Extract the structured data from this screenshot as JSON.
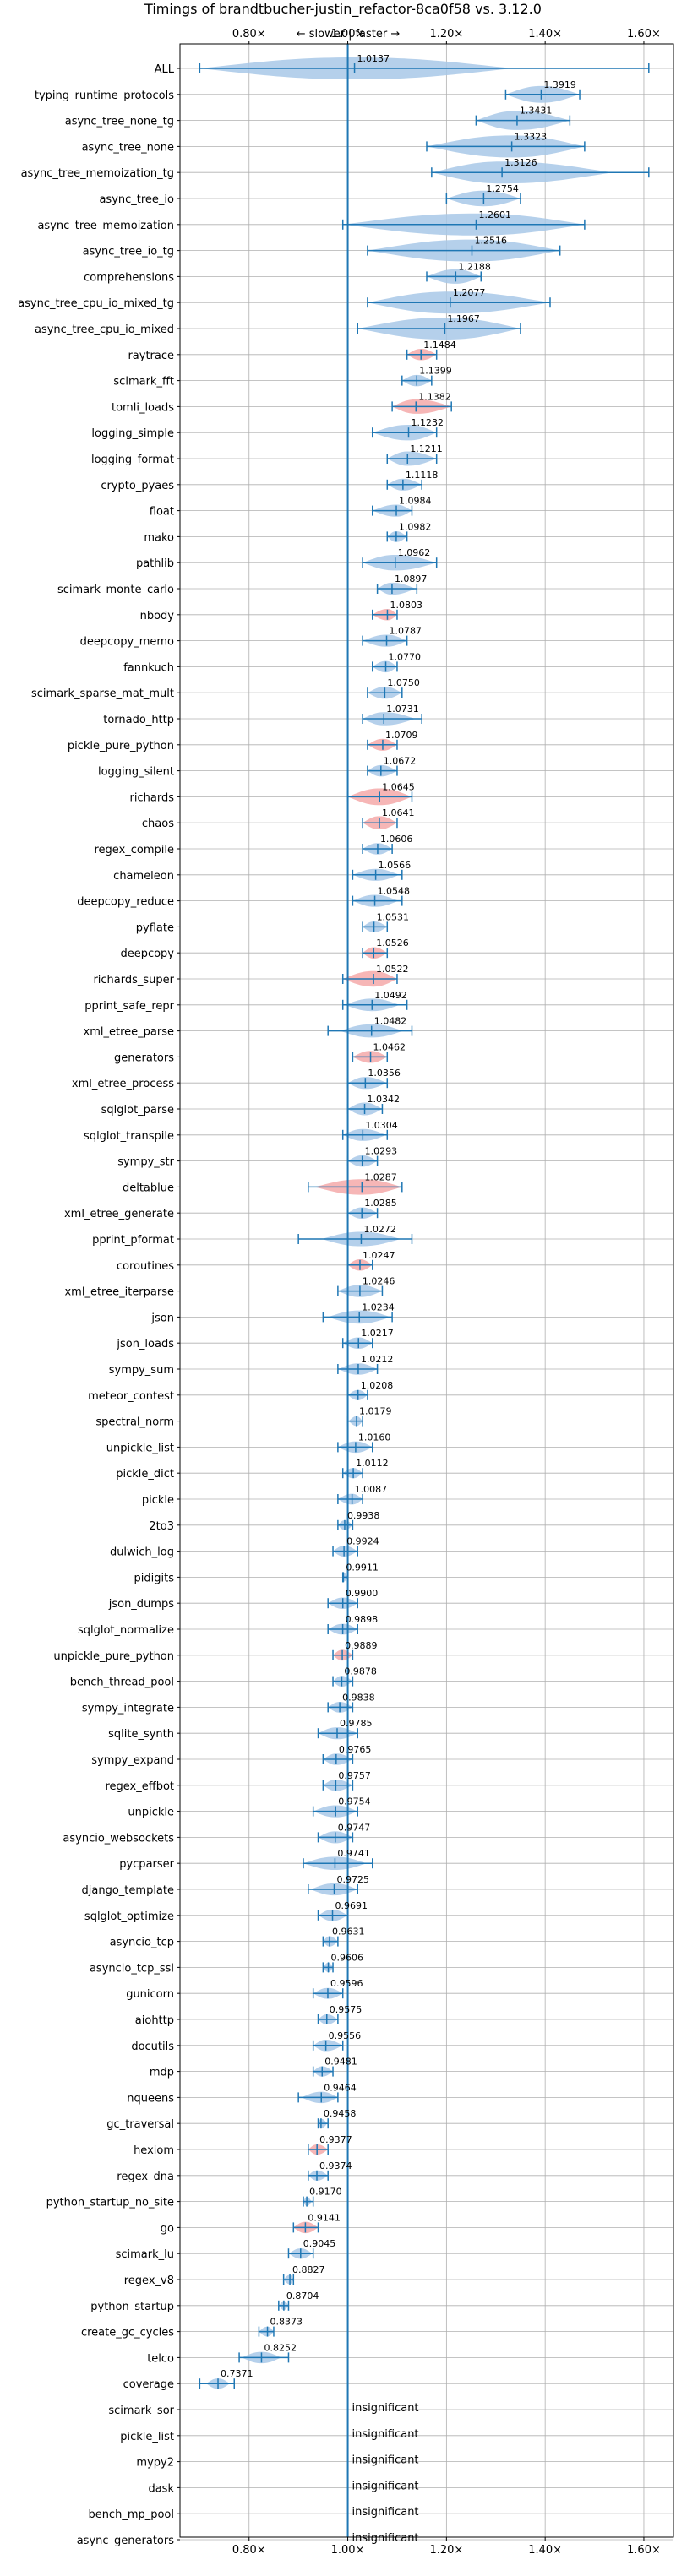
{
  "chart_data": {
    "type": "violin",
    "title": "Timings of brandtbucher-justin_refactor-8ca0f58 vs. 3.12.0",
    "direction_labels": {
      "slower": "← slower",
      "separator": "|",
      "faster": "faster →"
    },
    "xlim": [
      0.66,
      1.66
    ],
    "xticks": [
      {
        "value": 0.8,
        "label": "0.80×"
      },
      {
        "value": 1.0,
        "label": "1.00×"
      },
      {
        "value": 1.2,
        "label": "1.20×"
      },
      {
        "value": 1.4,
        "label": "1.40×"
      },
      {
        "value": 1.6,
        "label": "1.60×"
      }
    ],
    "grid": true,
    "reference_line": 1.0,
    "insignificant_label": "insignificant",
    "colors": {
      "faster": "#a8c8e8",
      "slower": "#f4a9a9",
      "marker": "#1f77b4",
      "reference": "#1f77b4",
      "grid": "#b0b0b0"
    },
    "benchmarks": [
      {
        "name": "ALL",
        "value": 1.0137,
        "label": "1.0137",
        "lo": 0.7,
        "hi": 1.61,
        "spread": 0.2,
        "color": "faster"
      },
      {
        "name": "typing_runtime_protocols",
        "value": 1.3919,
        "label": "1.3919",
        "lo": 1.32,
        "hi": 1.47,
        "spread": 0.07,
        "color": "faster"
      },
      {
        "name": "async_tree_none_tg",
        "value": 1.3431,
        "label": "1.3431",
        "lo": 1.26,
        "hi": 1.45,
        "spread": 0.09,
        "color": "faster"
      },
      {
        "name": "async_tree_none",
        "value": 1.3323,
        "label": "1.3323",
        "lo": 1.16,
        "hi": 1.48,
        "spread": 0.14,
        "color": "faster"
      },
      {
        "name": "async_tree_memoization_tg",
        "value": 1.3126,
        "label": "1.3126",
        "lo": 1.17,
        "hi": 1.61,
        "spread": 0.14,
        "color": "faster"
      },
      {
        "name": "async_tree_io",
        "value": 1.2754,
        "label": "1.2754",
        "lo": 1.2,
        "hi": 1.35,
        "spread": 0.06,
        "color": "faster"
      },
      {
        "name": "async_tree_memoization",
        "value": 1.2601,
        "label": "1.2601",
        "lo": 0.99,
        "hi": 1.48,
        "spread": 0.22,
        "color": "faster"
      },
      {
        "name": "async_tree_io_tg",
        "value": 1.2516,
        "label": "1.2516",
        "lo": 1.04,
        "hi": 1.43,
        "spread": 0.17,
        "color": "faster"
      },
      {
        "name": "comprehensions",
        "value": 1.2188,
        "label": "1.2188",
        "lo": 1.16,
        "hi": 1.27,
        "spread": 0.05,
        "color": "faster"
      },
      {
        "name": "async_tree_cpu_io_mixed_tg",
        "value": 1.2077,
        "label": "1.2077",
        "lo": 1.04,
        "hi": 1.41,
        "spread": 0.17,
        "color": "faster"
      },
      {
        "name": "async_tree_cpu_io_mixed",
        "value": 1.1967,
        "label": "1.1967",
        "lo": 1.02,
        "hi": 1.35,
        "spread": 0.15,
        "color": "faster"
      },
      {
        "name": "raytrace",
        "value": 1.1484,
        "label": "1.1484",
        "lo": 1.12,
        "hi": 1.18,
        "spread": 0.025,
        "color": "slower"
      },
      {
        "name": "scimark_fft",
        "value": 1.1399,
        "label": "1.1399",
        "lo": 1.11,
        "hi": 1.17,
        "spread": 0.025,
        "color": "faster"
      },
      {
        "name": "tomli_loads",
        "value": 1.1382,
        "label": "1.1382",
        "lo": 1.09,
        "hi": 1.21,
        "spread": 0.05,
        "color": "slower"
      },
      {
        "name": "logging_simple",
        "value": 1.1232,
        "label": "1.1232",
        "lo": 1.05,
        "hi": 1.18,
        "spread": 0.06,
        "color": "faster"
      },
      {
        "name": "logging_format",
        "value": 1.1211,
        "label": "1.1211",
        "lo": 1.08,
        "hi": 1.18,
        "spread": 0.05,
        "color": "faster"
      },
      {
        "name": "crypto_pyaes",
        "value": 1.1118,
        "label": "1.1118",
        "lo": 1.08,
        "hi": 1.15,
        "spread": 0.03,
        "color": "faster"
      },
      {
        "name": "float",
        "value": 1.0984,
        "label": "1.0984",
        "lo": 1.05,
        "hi": 1.13,
        "spread": 0.03,
        "color": "faster"
      },
      {
        "name": "mako",
        "value": 1.0982,
        "label": "1.0982",
        "lo": 1.08,
        "hi": 1.12,
        "spread": 0.02,
        "color": "faster"
      },
      {
        "name": "pathlib",
        "value": 1.0962,
        "label": "1.0962",
        "lo": 1.03,
        "hi": 1.18,
        "spread": 0.06,
        "color": "faster"
      },
      {
        "name": "scimark_monte_carlo",
        "value": 1.0897,
        "label": "1.0897",
        "lo": 1.06,
        "hi": 1.14,
        "spread": 0.03,
        "color": "faster"
      },
      {
        "name": "nbody",
        "value": 1.0803,
        "label": "1.0803",
        "lo": 1.05,
        "hi": 1.1,
        "spread": 0.025,
        "color": "slower"
      },
      {
        "name": "deepcopy_memo",
        "value": 1.0787,
        "label": "1.0787",
        "lo": 1.03,
        "hi": 1.12,
        "spread": 0.03,
        "color": "faster"
      },
      {
        "name": "fannkuch",
        "value": 1.077,
        "label": "1.0770",
        "lo": 1.05,
        "hi": 1.1,
        "spread": 0.025,
        "color": "faster"
      },
      {
        "name": "scimark_sparse_mat_mult",
        "value": 1.075,
        "label": "1.0750",
        "lo": 1.04,
        "hi": 1.11,
        "spread": 0.03,
        "color": "faster"
      },
      {
        "name": "tornado_http",
        "value": 1.0731,
        "label": "1.0731",
        "lo": 1.03,
        "hi": 1.15,
        "spread": 0.04,
        "color": "faster"
      },
      {
        "name": "pickle_pure_python",
        "value": 1.0709,
        "label": "1.0709",
        "lo": 1.04,
        "hi": 1.1,
        "spread": 0.03,
        "color": "slower"
      },
      {
        "name": "logging_silent",
        "value": 1.0672,
        "label": "1.0672",
        "lo": 1.04,
        "hi": 1.1,
        "spread": 0.025,
        "color": "faster"
      },
      {
        "name": "richards",
        "value": 1.0645,
        "label": "1.0645",
        "lo": 1.0,
        "hi": 1.13,
        "spread": 0.07,
        "color": "slower"
      },
      {
        "name": "chaos",
        "value": 1.0641,
        "label": "1.0641",
        "lo": 1.03,
        "hi": 1.1,
        "spread": 0.04,
        "color": "slower"
      },
      {
        "name": "regex_compile",
        "value": 1.0606,
        "label": "1.0606",
        "lo": 1.03,
        "hi": 1.09,
        "spread": 0.025,
        "color": "faster"
      },
      {
        "name": "chameleon",
        "value": 1.0566,
        "label": "1.0566",
        "lo": 1.01,
        "hi": 1.11,
        "spread": 0.03,
        "color": "faster"
      },
      {
        "name": "deepcopy_reduce",
        "value": 1.0548,
        "label": "1.0548",
        "lo": 1.01,
        "hi": 1.11,
        "spread": 0.03,
        "color": "faster"
      },
      {
        "name": "pyflate",
        "value": 1.0531,
        "label": "1.0531",
        "lo": 1.03,
        "hi": 1.08,
        "spread": 0.02,
        "color": "faster"
      },
      {
        "name": "deepcopy",
        "value": 1.0526,
        "label": "1.0526",
        "lo": 1.03,
        "hi": 1.08,
        "spread": 0.025,
        "color": "slower"
      },
      {
        "name": "richards_super",
        "value": 1.0522,
        "label": "1.0522",
        "lo": 0.99,
        "hi": 1.1,
        "spread": 0.06,
        "color": "slower"
      },
      {
        "name": "pprint_safe_repr",
        "value": 1.0492,
        "label": "1.0492",
        "lo": 0.99,
        "hi": 1.12,
        "spread": 0.035,
        "color": "faster"
      },
      {
        "name": "xml_etree_parse",
        "value": 1.0482,
        "label": "1.0482",
        "lo": 0.96,
        "hi": 1.13,
        "spread": 0.04,
        "color": "faster"
      },
      {
        "name": "generators",
        "value": 1.0462,
        "label": "1.0462",
        "lo": 1.01,
        "hi": 1.08,
        "spread": 0.03,
        "color": "slower"
      },
      {
        "name": "xml_etree_process",
        "value": 1.0356,
        "label": "1.0356",
        "lo": 1.0,
        "hi": 1.08,
        "spread": 0.03,
        "color": "faster"
      },
      {
        "name": "sqlglot_parse",
        "value": 1.0342,
        "label": "1.0342",
        "lo": 1.0,
        "hi": 1.07,
        "spread": 0.035,
        "color": "faster"
      },
      {
        "name": "sqlglot_transpile",
        "value": 1.0304,
        "label": "1.0304",
        "lo": 0.99,
        "hi": 1.08,
        "spread": 0.03,
        "color": "faster"
      },
      {
        "name": "sympy_str",
        "value": 1.0293,
        "label": "1.0293",
        "lo": 1.0,
        "hi": 1.06,
        "spread": 0.025,
        "color": "faster"
      },
      {
        "name": "deltablue",
        "value": 1.0287,
        "label": "1.0287",
        "lo": 0.92,
        "hi": 1.11,
        "spread": 0.06,
        "color": "slower"
      },
      {
        "name": "xml_etree_generate",
        "value": 1.0285,
        "label": "1.0285",
        "lo": 1.0,
        "hi": 1.06,
        "spread": 0.025,
        "color": "faster"
      },
      {
        "name": "pprint_pformat",
        "value": 1.0272,
        "label": "1.0272",
        "lo": 0.9,
        "hi": 1.13,
        "spread": 0.05,
        "color": "faster"
      },
      {
        "name": "coroutines",
        "value": 1.0247,
        "label": "1.0247",
        "lo": 1.0,
        "hi": 1.05,
        "spread": 0.025,
        "color": "slower"
      },
      {
        "name": "xml_etree_iterparse",
        "value": 1.0246,
        "label": "1.0246",
        "lo": 0.98,
        "hi": 1.07,
        "spread": 0.03,
        "color": "faster"
      },
      {
        "name": "json",
        "value": 1.0234,
        "label": "1.0234",
        "lo": 0.95,
        "hi": 1.09,
        "spread": 0.04,
        "color": "faster"
      },
      {
        "name": "json_loads",
        "value": 1.0217,
        "label": "1.0217",
        "lo": 0.99,
        "hi": 1.05,
        "spread": 0.025,
        "color": "faster"
      },
      {
        "name": "sympy_sum",
        "value": 1.0212,
        "label": "1.0212",
        "lo": 0.98,
        "hi": 1.06,
        "spread": 0.025,
        "color": "faster"
      },
      {
        "name": "meteor_contest",
        "value": 1.0208,
        "label": "1.0208",
        "lo": 1.0,
        "hi": 1.04,
        "spread": 0.015,
        "color": "faster"
      },
      {
        "name": "spectral_norm",
        "value": 1.0179,
        "label": "1.0179",
        "lo": 1.0,
        "hi": 1.03,
        "spread": 0.01,
        "color": "faster"
      },
      {
        "name": "unpickle_list",
        "value": 1.016,
        "label": "1.0160",
        "lo": 0.98,
        "hi": 1.05,
        "spread": 0.025,
        "color": "faster"
      },
      {
        "name": "pickle_dict",
        "value": 1.0112,
        "label": "1.0112",
        "lo": 0.99,
        "hi": 1.03,
        "spread": 0.015,
        "color": "faster"
      },
      {
        "name": "pickle",
        "value": 1.0087,
        "label": "1.0087",
        "lo": 0.98,
        "hi": 1.03,
        "spread": 0.02,
        "color": "faster"
      },
      {
        "name": "2to3",
        "value": 0.9938,
        "label": "0.9938",
        "lo": 0.98,
        "hi": 1.01,
        "spread": 0.012,
        "color": "faster"
      },
      {
        "name": "dulwich_log",
        "value": 0.9924,
        "label": "0.9924",
        "lo": 0.97,
        "hi": 1.02,
        "spread": 0.02,
        "color": "faster"
      },
      {
        "name": "pidigits",
        "value": 0.9911,
        "label": "0.9911",
        "lo": 0.99,
        "hi": 1.0,
        "spread": 0.006,
        "color": "faster"
      },
      {
        "name": "json_dumps",
        "value": 0.99,
        "label": "0.9900",
        "lo": 0.96,
        "hi": 1.02,
        "spread": 0.025,
        "color": "faster"
      },
      {
        "name": "sqlglot_normalize",
        "value": 0.9898,
        "label": "0.9898",
        "lo": 0.96,
        "hi": 1.02,
        "spread": 0.02,
        "color": "faster"
      },
      {
        "name": "unpickle_pure_python",
        "value": 0.9889,
        "label": "0.9889",
        "lo": 0.97,
        "hi": 1.01,
        "spread": 0.02,
        "color": "slower"
      },
      {
        "name": "bench_thread_pool",
        "value": 0.9878,
        "label": "0.9878",
        "lo": 0.97,
        "hi": 1.01,
        "spread": 0.02,
        "color": "faster"
      },
      {
        "name": "sympy_integrate",
        "value": 0.9838,
        "label": "0.9838",
        "lo": 0.96,
        "hi": 1.01,
        "spread": 0.02,
        "color": "faster"
      },
      {
        "name": "sqlite_synth",
        "value": 0.9785,
        "label": "0.9785",
        "lo": 0.94,
        "hi": 1.02,
        "spread": 0.03,
        "color": "faster"
      },
      {
        "name": "sympy_expand",
        "value": 0.9765,
        "label": "0.9765",
        "lo": 0.95,
        "hi": 1.01,
        "spread": 0.025,
        "color": "faster"
      },
      {
        "name": "regex_effbot",
        "value": 0.9757,
        "label": "0.9757",
        "lo": 0.95,
        "hi": 1.01,
        "spread": 0.025,
        "color": "faster"
      },
      {
        "name": "unpickle",
        "value": 0.9754,
        "label": "0.9754",
        "lo": 0.93,
        "hi": 1.02,
        "spread": 0.03,
        "color": "faster"
      },
      {
        "name": "asyncio_websockets",
        "value": 0.9747,
        "label": "0.9747",
        "lo": 0.94,
        "hi": 1.01,
        "spread": 0.03,
        "color": "faster"
      },
      {
        "name": "pycparser",
        "value": 0.9741,
        "label": "0.9741",
        "lo": 0.91,
        "hi": 1.05,
        "spread": 0.04,
        "color": "faster"
      },
      {
        "name": "django_template",
        "value": 0.9725,
        "label": "0.9725",
        "lo": 0.92,
        "hi": 1.02,
        "spread": 0.03,
        "color": "faster"
      },
      {
        "name": "sqlglot_optimize",
        "value": 0.9691,
        "label": "0.9691",
        "lo": 0.94,
        "hi": 1.0,
        "spread": 0.025,
        "color": "faster"
      },
      {
        "name": "asyncio_tcp",
        "value": 0.9631,
        "label": "0.9631",
        "lo": 0.95,
        "hi": 0.98,
        "spread": 0.015,
        "color": "faster"
      },
      {
        "name": "asyncio_tcp_ssl",
        "value": 0.9606,
        "label": "0.9606",
        "lo": 0.95,
        "hi": 0.97,
        "spread": 0.01,
        "color": "faster"
      },
      {
        "name": "gunicorn",
        "value": 0.9596,
        "label": "0.9596",
        "lo": 0.93,
        "hi": 0.99,
        "spread": 0.02,
        "color": "faster"
      },
      {
        "name": "aiohttp",
        "value": 0.9575,
        "label": "0.9575",
        "lo": 0.94,
        "hi": 0.98,
        "spread": 0.015,
        "color": "faster"
      },
      {
        "name": "docutils",
        "value": 0.9556,
        "label": "0.9556",
        "lo": 0.93,
        "hi": 0.99,
        "spread": 0.025,
        "color": "faster"
      },
      {
        "name": "mdp",
        "value": 0.9481,
        "label": "0.9481",
        "lo": 0.93,
        "hi": 0.97,
        "spread": 0.015,
        "color": "faster"
      },
      {
        "name": "nqueens",
        "value": 0.9464,
        "label": "0.9464",
        "lo": 0.9,
        "hi": 0.98,
        "spread": 0.025,
        "color": "faster"
      },
      {
        "name": "gc_traversal",
        "value": 0.9458,
        "label": "0.9458",
        "lo": 0.94,
        "hi": 0.96,
        "spread": 0.008,
        "color": "faster"
      },
      {
        "name": "hexiom",
        "value": 0.9377,
        "label": "0.9377",
        "lo": 0.92,
        "hi": 0.96,
        "spread": 0.015,
        "color": "slower"
      },
      {
        "name": "regex_dna",
        "value": 0.9374,
        "label": "0.9374",
        "lo": 0.92,
        "hi": 0.96,
        "spread": 0.015,
        "color": "faster"
      },
      {
        "name": "python_startup_no_site",
        "value": 0.917,
        "label": "0.9170",
        "lo": 0.91,
        "hi": 0.93,
        "spread": 0.006,
        "color": "faster"
      },
      {
        "name": "go",
        "value": 0.9141,
        "label": "0.9141",
        "lo": 0.89,
        "hi": 0.94,
        "spread": 0.025,
        "color": "slower"
      },
      {
        "name": "scimark_lu",
        "value": 0.9045,
        "label": "0.9045",
        "lo": 0.88,
        "hi": 0.93,
        "spread": 0.015,
        "color": "faster"
      },
      {
        "name": "regex_v8",
        "value": 0.8827,
        "label": "0.8827",
        "lo": 0.87,
        "hi": 0.89,
        "spread": 0.008,
        "color": "faster"
      },
      {
        "name": "python_startup",
        "value": 0.8704,
        "label": "0.8704",
        "lo": 0.86,
        "hi": 0.88,
        "spread": 0.006,
        "color": "faster"
      },
      {
        "name": "create_gc_cycles",
        "value": 0.8373,
        "label": "0.8373",
        "lo": 0.82,
        "hi": 0.85,
        "spread": 0.012,
        "color": "faster"
      },
      {
        "name": "telco",
        "value": 0.8252,
        "label": "0.8252",
        "lo": 0.78,
        "hi": 0.88,
        "spread": 0.025,
        "color": "faster"
      },
      {
        "name": "coverage",
        "value": 0.7371,
        "label": "0.7371",
        "lo": 0.7,
        "hi": 0.77,
        "spread": 0.015,
        "color": "faster"
      },
      {
        "name": "scimark_sor",
        "insignificant": true
      },
      {
        "name": "pickle_list",
        "insignificant": true
      },
      {
        "name": "mypy2",
        "insignificant": true
      },
      {
        "name": "dask",
        "insignificant": true
      },
      {
        "name": "bench_mp_pool",
        "insignificant": true
      },
      {
        "name": "async_generators",
        "insignificant": true
      }
    ]
  }
}
